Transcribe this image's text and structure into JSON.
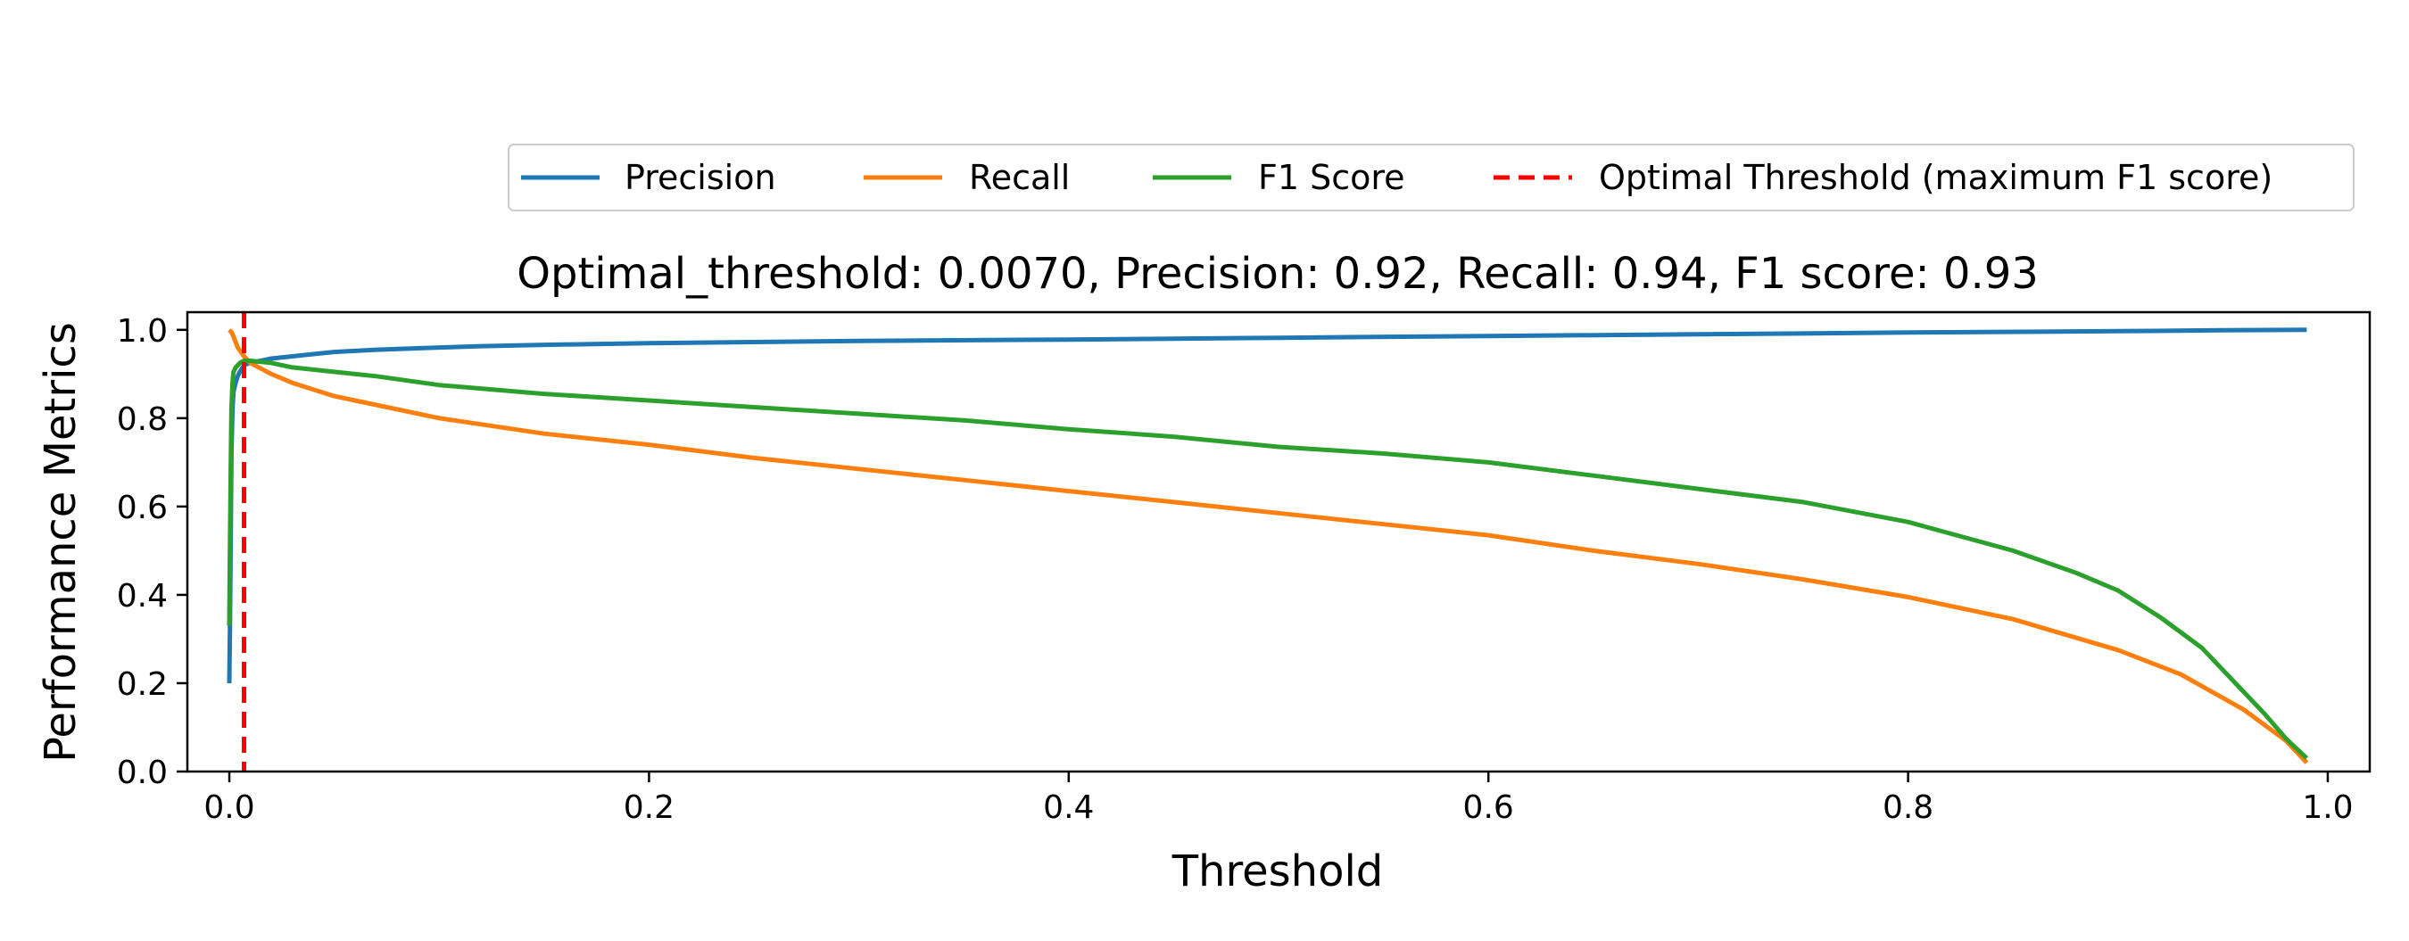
{
  "chart_data": {
    "type": "line",
    "title": "Optimal_threshold: 0.0070, Precision: 0.92, Recall: 0.94, F1 score: 0.93",
    "xlabel": "Threshold",
    "ylabel": "Performance Metrics",
    "xlim": [
      -0.02,
      1.02
    ],
    "ylim": [
      0.0,
      1.04
    ],
    "xticks": [
      "0.0",
      "0.2",
      "0.4",
      "0.6",
      "0.8",
      "1.0"
    ],
    "yticks": [
      "0.0",
      "0.2",
      "0.4",
      "0.6",
      "0.8",
      "1.0"
    ],
    "grid": false,
    "legend_placement": "above plot, right-aligned, single row",
    "series": [
      {
        "name": "Precision",
        "color": "#1f77b4",
        "x": [
          0.0,
          0.0003,
          0.0007,
          0.001,
          0.0015,
          0.002,
          0.003,
          0.004,
          0.005,
          0.006,
          0.007,
          0.008,
          0.01,
          0.015,
          0.02,
          0.03,
          0.04,
          0.05,
          0.07,
          0.1,
          0.12,
          0.15,
          0.2,
          0.3,
          0.4,
          0.5,
          0.6,
          0.7,
          0.8,
          0.9,
          0.95,
          0.99
        ],
        "y": [
          0.2,
          0.32,
          0.55,
          0.72,
          0.82,
          0.86,
          0.88,
          0.895,
          0.905,
          0.912,
          0.92,
          0.922,
          0.926,
          0.93,
          0.935,
          0.94,
          0.945,
          0.95,
          0.955,
          0.96,
          0.963,
          0.966,
          0.97,
          0.975,
          0.978,
          0.982,
          0.986,
          0.99,
          0.994,
          0.997,
          0.999,
          1.0
        ]
      },
      {
        "name": "Recall",
        "color": "#ff7f0e",
        "x": [
          0.0,
          0.001,
          0.002,
          0.004,
          0.007,
          0.01,
          0.02,
          0.03,
          0.05,
          0.07,
          0.1,
          0.15,
          0.2,
          0.25,
          0.3,
          0.35,
          0.4,
          0.45,
          0.5,
          0.55,
          0.6,
          0.65,
          0.7,
          0.75,
          0.8,
          0.85,
          0.9,
          0.93,
          0.96,
          0.98,
          0.99
        ],
        "y": [
          1.0,
          0.995,
          0.985,
          0.96,
          0.94,
          0.925,
          0.9,
          0.88,
          0.85,
          0.83,
          0.8,
          0.765,
          0.74,
          0.71,
          0.685,
          0.66,
          0.635,
          0.61,
          0.585,
          0.56,
          0.535,
          0.5,
          0.47,
          0.435,
          0.395,
          0.345,
          0.275,
          0.22,
          0.14,
          0.07,
          0.02
        ]
      },
      {
        "name": "F1 Score",
        "color": "#2ca02c",
        "x": [
          0.0,
          0.0003,
          0.0007,
          0.001,
          0.0015,
          0.002,
          0.003,
          0.005,
          0.007,
          0.01,
          0.02,
          0.03,
          0.05,
          0.07,
          0.1,
          0.15,
          0.2,
          0.25,
          0.3,
          0.35,
          0.4,
          0.45,
          0.5,
          0.55,
          0.6,
          0.65,
          0.7,
          0.75,
          0.8,
          0.85,
          0.88,
          0.9,
          0.92,
          0.94,
          0.96,
          0.97,
          0.98,
          0.99
        ],
        "y": [
          0.33,
          0.5,
          0.7,
          0.82,
          0.88,
          0.905,
          0.915,
          0.925,
          0.93,
          0.93,
          0.925,
          0.915,
          0.905,
          0.895,
          0.875,
          0.855,
          0.84,
          0.825,
          0.81,
          0.795,
          0.775,
          0.758,
          0.735,
          0.72,
          0.7,
          0.67,
          0.64,
          0.61,
          0.565,
          0.5,
          0.45,
          0.41,
          0.35,
          0.28,
          0.18,
          0.13,
          0.075,
          0.03
        ]
      }
    ],
    "vertical_lines": [
      {
        "name": "Optimal Threshold (maximum F1 score)",
        "x": 0.007,
        "color": "#ff0000",
        "style": "dashed"
      }
    ]
  }
}
